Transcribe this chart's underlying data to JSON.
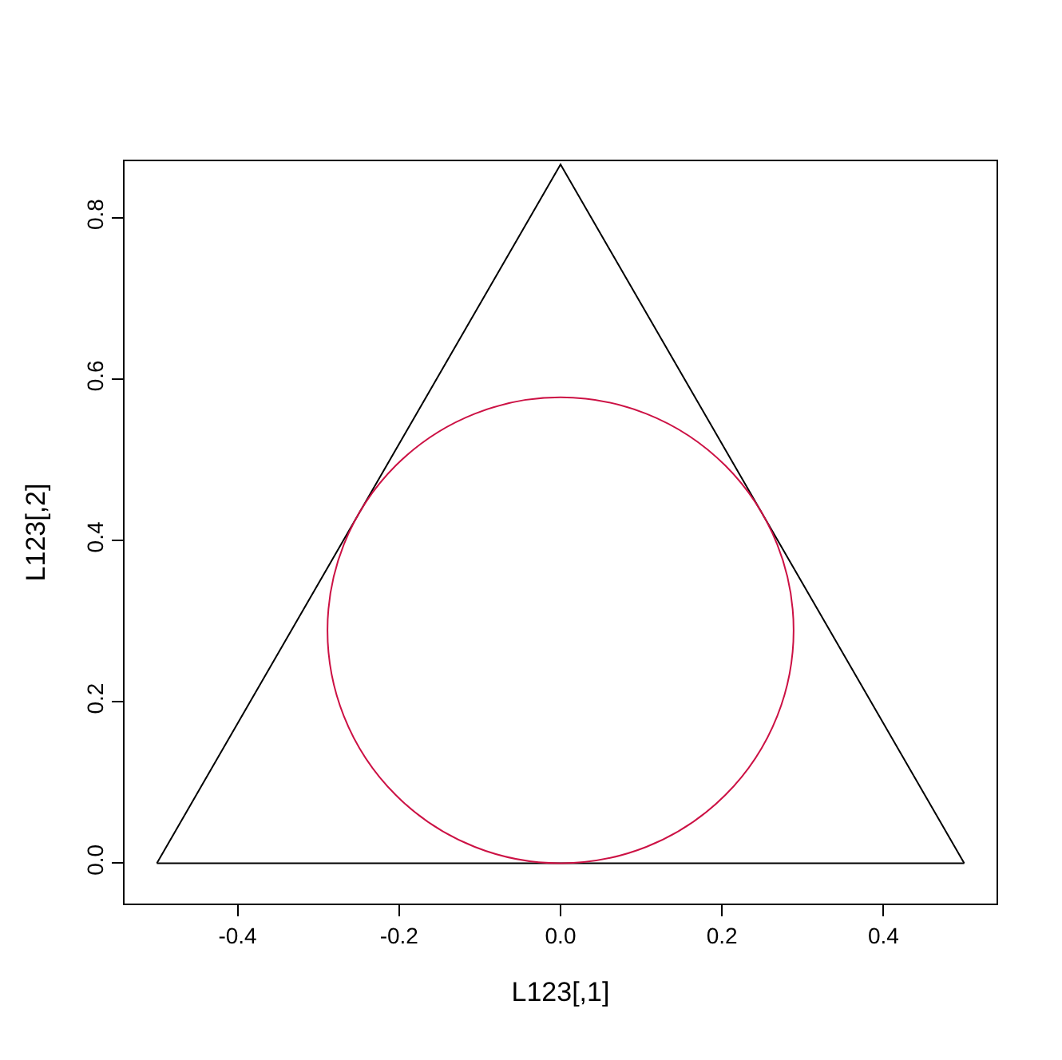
{
  "chart_data": {
    "type": "line",
    "xlabel": "L123[,1]",
    "ylabel": "L123[,2]",
    "xlim": [
      -0.54,
      0.54
    ],
    "ylim": [
      -0.05,
      0.87
    ],
    "xticks": [
      -0.4,
      -0.2,
      {
        "value": 0,
        "label": "0.0"
      },
      0.2,
      0.4
    ],
    "yticks": [
      {
        "value": 0,
        "label": "0.0"
      },
      0.2,
      0.4,
      0.6,
      0.8
    ],
    "marker": "none",
    "line_style": "solid",
    "series": [
      {
        "color": "#000000",
        "x": [
          -0.5,
          0,
          0.5
        ],
        "values": [
          0,
          0.866,
          0
        ]
      },
      {
        "color": "#000000",
        "x": [
          -0.5,
          0.5
        ],
        "values": [
          0,
          0
        ]
      }
    ]
  }
}
